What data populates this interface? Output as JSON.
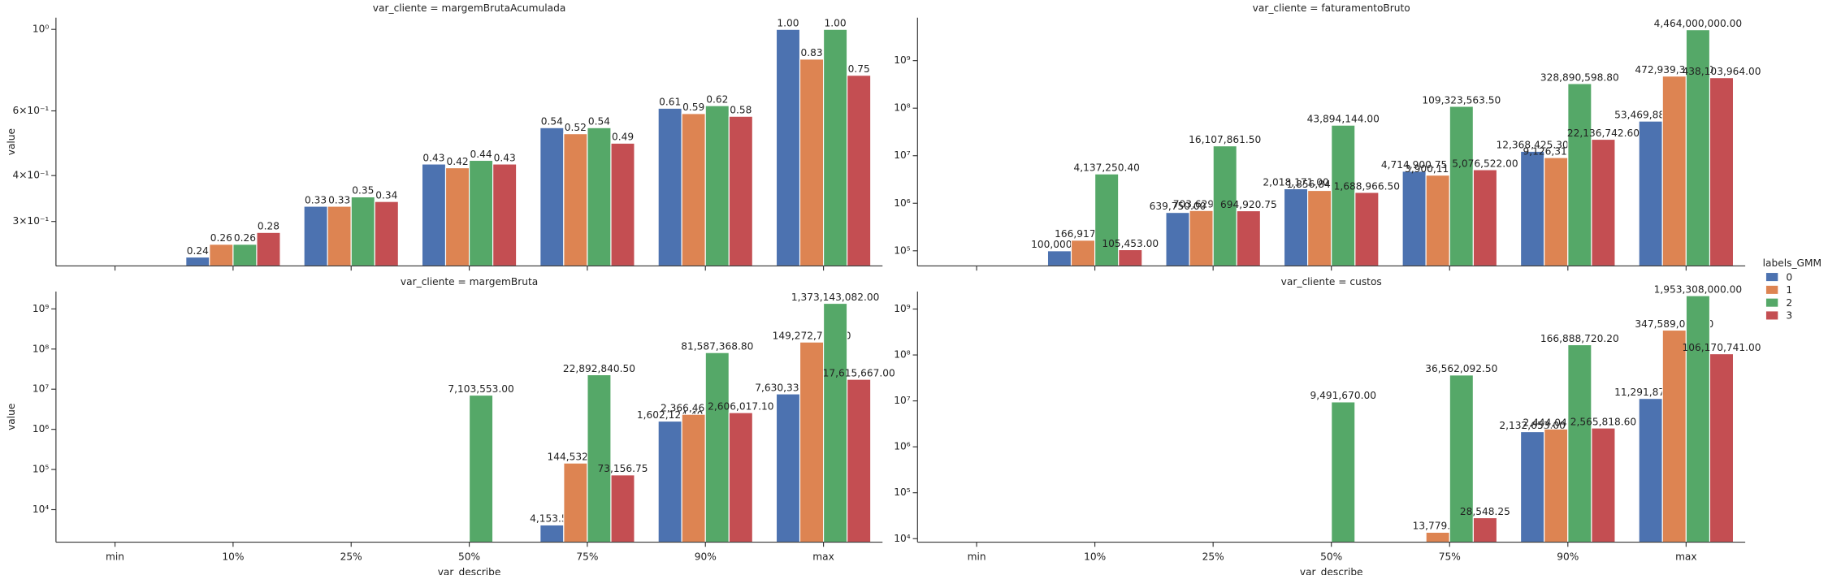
{
  "chart_data": {
    "type": "bar",
    "log_scale": true,
    "categories": [
      "min",
      "10%",
      "25%",
      "50%",
      "75%",
      "90%",
      "max"
    ],
    "xlabel": "var_describe",
    "ylabel": "value",
    "legend": {
      "title": "labels_GMM",
      "position": "right"
    },
    "series": [
      {
        "name": "0",
        "color": "#4c72b0"
      },
      {
        "name": "1",
        "color": "#dd8452"
      },
      {
        "name": "2",
        "color": "#55a868"
      },
      {
        "name": "3",
        "color": "#c44e52"
      }
    ],
    "facets": [
      {
        "title": "var_cliente = margemBrutaAcumulada",
        "ylim": [
          0.227,
          1.076
        ],
        "yticks": [
          {
            "value": 0.3,
            "label": "3×10⁻¹"
          },
          {
            "value": 0.4,
            "label": "4×10⁻¹"
          },
          {
            "value": 0.6,
            "label": "6×10⁻¹"
          },
          {
            "value": 1,
            "label": "10⁰"
          }
        ],
        "values": [
          [
            null,
            0.24,
            0.33,
            0.43,
            0.54,
            0.61,
            1.0
          ],
          [
            null,
            0.26,
            0.33,
            0.42,
            0.52,
            0.59,
            0.83
          ],
          [
            null,
            0.26,
            0.35,
            0.44,
            0.54,
            0.62,
            1.0
          ],
          [
            null,
            0.28,
            0.34,
            0.43,
            0.49,
            0.58,
            0.75
          ]
        ],
        "value_labels": [
          [
            null,
            "0.24",
            "0.33",
            "0.43",
            "0.54",
            "0.61",
            "1.00"
          ],
          [
            null,
            "0.26",
            "0.33",
            "0.42",
            "0.52",
            "0.59",
            "0.83"
          ],
          [
            null,
            "0.26",
            "0.35",
            "0.44",
            "0.54",
            "0.62",
            "1.00"
          ],
          [
            null,
            "0.28",
            "0.34",
            "0.43",
            "0.49",
            "0.58",
            "0.75"
          ]
        ]
      },
      {
        "title": "var_cliente = faturamentoBruto",
        "ylim": [
          48000,
          8000000000
        ],
        "yticks": [
          {
            "value": 100000,
            "label": "10⁵"
          },
          {
            "value": 1000000,
            "label": "10⁶"
          },
          {
            "value": 10000000,
            "label": "10⁷"
          },
          {
            "value": 100000000,
            "label": "10⁸"
          },
          {
            "value": 1000000000,
            "label": "10⁹"
          }
        ],
        "values": [
          [
            null,
            100000.0,
            639750.0,
            2018171.0,
            4714900.75,
            12368425.3,
            53469885.0
          ],
          [
            null,
            166917.2,
            703629.5,
            1856844.0,
            3900110.5,
            9126310.0,
            472939365.0
          ],
          [
            null,
            4137250.4,
            16107861.5,
            43894144.0,
            109323563.5,
            328890598.8,
            4464000000.0
          ],
          [
            null,
            105453.0,
            694920.75,
            1688966.5,
            5076522.0,
            22136742.6,
            438103964.0
          ]
        ],
        "value_labels": [
          [
            null,
            "100,000.00",
            "639,750.00",
            "2,018,171.00",
            "4,714,900.75",
            "12,368,425.30",
            "53,469,885.00"
          ],
          [
            null,
            "166,917.20",
            "703,629.50",
            "1,856,844.00",
            "3,900,110.50",
            "9,126,310.00",
            "472,939,365.00"
          ],
          [
            null,
            "4,137,250.40",
            "16,107,861.50",
            "43,894,144.00",
            "109,323,563.50",
            "328,890,598.80",
            "4,464,000,000.00"
          ],
          [
            null,
            "105,453.00",
            "694,920.75",
            "1,688,966.50",
            "5,076,522.00",
            "22,136,742.60",
            "438,103,964.00"
          ]
        ]
      },
      {
        "title": "var_cliente = margemBruta",
        "ylim": [
          1550,
          2700000000
        ],
        "yticks": [
          {
            "value": 10000,
            "label": "10⁴"
          },
          {
            "value": 100000,
            "label": "10⁵"
          },
          {
            "value": 1000000,
            "label": "10⁶"
          },
          {
            "value": 10000000,
            "label": "10⁷"
          },
          {
            "value": 100000000,
            "label": "10⁸"
          },
          {
            "value": 1000000000,
            "label": "10⁹"
          }
        ],
        "values": [
          [
            null,
            null,
            null,
            null,
            4153.5,
            1602124.4,
            7630338.0
          ],
          [
            null,
            null,
            null,
            null,
            144532.0,
            2366465.2,
            149272777.0
          ],
          [
            null,
            null,
            null,
            7103553.0,
            22892840.5,
            81587368.8,
            1373143082.0
          ],
          [
            null,
            null,
            null,
            null,
            73156.75,
            2606017.1,
            17615667.0
          ]
        ],
        "value_labels": [
          [
            null,
            null,
            null,
            null,
            "4,153.50",
            "1,602,124.40",
            "7,630,338.00"
          ],
          [
            null,
            null,
            null,
            null,
            "144,532.00",
            "2,366,465.20",
            "149,272,777.00"
          ],
          [
            null,
            null,
            null,
            "7,103,553.00",
            "22,892,840.50",
            "81,587,368.80",
            "1,373,143,082.00"
          ],
          [
            null,
            null,
            null,
            null,
            "73,156.75",
            "2,606,017.10",
            "17,615,667.00"
          ]
        ]
      },
      {
        "title": "var_cliente = custos",
        "ylim": [
          8400,
          2400000000
        ],
        "yticks": [
          {
            "value": 10000,
            "label": "10⁴"
          },
          {
            "value": 100000,
            "label": "10⁵"
          },
          {
            "value": 1000000,
            "label": "10⁶"
          },
          {
            "value": 10000000,
            "label": "10⁷"
          },
          {
            "value": 100000000,
            "label": "10⁸"
          },
          {
            "value": 1000000000,
            "label": "10⁹"
          }
        ],
        "values": [
          [
            null,
            null,
            null,
            null,
            null,
            2132653.0,
            11291877.0
          ],
          [
            null,
            null,
            null,
            null,
            13779.0,
            2444045.6,
            347589000.0
          ],
          [
            null,
            null,
            null,
            9491670.0,
            36562092.5,
            166888720.2,
            1953308000.0
          ],
          [
            null,
            null,
            null,
            null,
            28548.25,
            2565818.6,
            106170741.0
          ]
        ],
        "value_labels": [
          [
            null,
            null,
            null,
            null,
            null,
            "2,132,653.00",
            "11,291,877.00"
          ],
          [
            null,
            null,
            null,
            null,
            "13,779.00",
            "2,444,045.60",
            "347,589,000.00"
          ],
          [
            null,
            null,
            null,
            "9,491,670.00",
            "36,562,092.50",
            "166,888,720.20",
            "1,953,308,000.00"
          ],
          [
            null,
            null,
            null,
            null,
            "28,548.25",
            "2,565,818.60",
            "106,170,741.00"
          ]
        ]
      }
    ]
  }
}
